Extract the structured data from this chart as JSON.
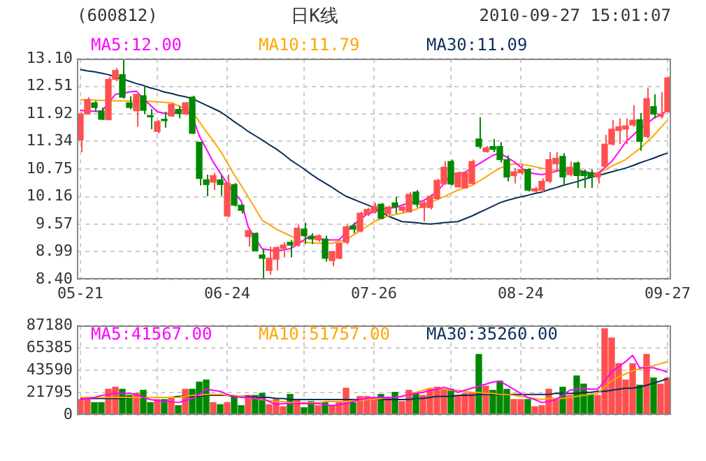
{
  "chart_data": [
    {
      "type": "candlestick",
      "title": "(600812)",
      "subtitle": "日K线",
      "annotations": [
        "2010-09-27 15:01:07"
      ],
      "legend": "top",
      "grid": true,
      "categories": [
        "05-21",
        null,
        null,
        null,
        null,
        null,
        null,
        null,
        null,
        null,
        null,
        null,
        null,
        null,
        null,
        null,
        null,
        null,
        null,
        null,
        null,
        "06-24",
        null,
        null,
        null,
        null,
        null,
        null,
        null,
        null,
        null,
        null,
        null,
        null,
        null,
        null,
        null,
        null,
        null,
        null,
        null,
        null,
        "07-26",
        null,
        null,
        null,
        null,
        null,
        null,
        null,
        null,
        null,
        null,
        null,
        null,
        null,
        null,
        null,
        null,
        null,
        null,
        null,
        null,
        "08-24",
        null,
        null,
        null,
        null,
        null,
        null,
        null,
        null,
        null,
        null,
        null,
        null,
        null,
        null,
        null,
        null,
        null,
        null,
        null,
        null,
        "09-27"
      ],
      "ylim": [
        8.4,
        13.1
      ],
      "yticks": [
        {
          "value": 8.4,
          "label": "8.40"
        },
        8.99,
        9.57,
        10.16,
        10.75,
        11.34,
        11.92,
        12.51,
        {
          "value": 13.1,
          "label": "13.10"
        }
      ],
      "ohlc": [
        [
          11.37,
          11.95,
          11.11,
          11.92
        ],
        [
          11.92,
          12.28,
          11.91,
          12.23
        ],
        [
          12.16,
          12.2,
          11.97,
          12.06
        ],
        [
          11.99,
          12.06,
          11.79,
          11.81
        ],
        [
          11.8,
          12.71,
          11.79,
          12.66
        ],
        [
          12.66,
          12.9,
          12.62,
          12.85
        ],
        [
          12.76,
          13.1,
          12.25,
          12.28
        ],
        [
          12.16,
          12.3,
          12.02,
          12.06
        ],
        [
          11.99,
          12.36,
          11.65,
          12.34
        ],
        [
          12.31,
          12.53,
          11.92,
          12.0
        ],
        [
          11.88,
          12.03,
          11.6,
          11.86
        ],
        [
          11.55,
          11.79,
          11.51,
          11.76
        ],
        [
          11.81,
          11.97,
          11.63,
          11.78
        ],
        [
          11.88,
          12.16,
          11.86,
          12.13
        ],
        [
          12.02,
          12.09,
          11.83,
          11.93
        ],
        [
          11.92,
          12.18,
          11.9,
          12.16
        ],
        [
          12.28,
          12.31,
          11.5,
          11.51
        ],
        [
          11.32,
          11.32,
          10.4,
          10.55
        ],
        [
          10.52,
          10.63,
          10.17,
          10.42
        ],
        [
          10.47,
          10.67,
          10.3,
          10.61
        ],
        [
          10.52,
          10.63,
          10.18,
          10.42
        ],
        [
          9.75,
          10.63,
          9.72,
          10.45
        ],
        [
          10.42,
          10.45,
          9.95,
          9.98
        ],
        [
          9.98,
          10.0,
          9.8,
          9.87
        ],
        [
          9.31,
          9.47,
          9.1,
          9.44
        ],
        [
          9.38,
          9.4,
          9.0,
          9.01
        ],
        [
          8.92,
          9.05,
          8.4,
          8.85
        ],
        [
          8.59,
          9.1,
          8.5,
          8.85
        ],
        [
          8.83,
          9.1,
          8.59,
          9.08
        ],
        [
          9.06,
          9.19,
          8.87,
          9.13
        ],
        [
          9.19,
          9.24,
          8.87,
          9.13
        ],
        [
          9.13,
          9.56,
          9.1,
          9.49
        ],
        [
          9.47,
          9.61,
          9.16,
          9.33
        ],
        [
          9.31,
          9.38,
          9.15,
          9.26
        ],
        [
          9.24,
          9.36,
          9.2,
          9.33
        ],
        [
          9.26,
          9.33,
          8.78,
          8.85
        ],
        [
          8.8,
          9.01,
          8.68,
          8.99
        ],
        [
          8.85,
          9.19,
          8.83,
          9.17
        ],
        [
          9.19,
          9.56,
          9.15,
          9.52
        ],
        [
          9.54,
          9.61,
          9.38,
          9.47
        ],
        [
          9.43,
          9.84,
          9.4,
          9.81
        ],
        [
          9.78,
          9.93,
          9.75,
          9.89
        ],
        [
          9.84,
          10.03,
          9.8,
          9.96
        ],
        [
          10.0,
          10.03,
          9.68,
          9.7
        ],
        [
          9.8,
          9.97,
          9.77,
          9.94
        ],
        [
          10.03,
          10.16,
          9.8,
          9.94
        ],
        [
          9.87,
          9.97,
          9.82,
          9.94
        ],
        [
          9.84,
          10.26,
          9.82,
          10.21
        ],
        [
          10.26,
          10.3,
          9.93,
          10.0
        ],
        [
          9.93,
          10.07,
          9.63,
          10.03
        ],
        [
          9.93,
          10.21,
          9.89,
          10.17
        ],
        [
          10.12,
          10.54,
          10.09,
          10.51
        ],
        [
          10.44,
          10.92,
          10.41,
          10.79
        ],
        [
          10.91,
          10.95,
          10.4,
          10.43
        ],
        [
          10.37,
          10.7,
          10.35,
          10.67
        ],
        [
          10.35,
          10.72,
          10.33,
          10.67
        ],
        [
          10.44,
          10.95,
          10.42,
          10.91
        ],
        [
          11.39,
          11.85,
          11.18,
          11.23
        ],
        [
          11.12,
          11.24,
          11.1,
          11.2
        ],
        [
          11.23,
          11.39,
          11.11,
          11.17
        ],
        [
          11.23,
          11.32,
          10.89,
          10.95
        ],
        [
          10.95,
          11.04,
          10.49,
          10.58
        ],
        [
          10.61,
          10.77,
          10.44,
          10.69
        ],
        [
          10.67,
          10.86,
          10.62,
          10.74
        ],
        [
          10.74,
          10.77,
          10.27,
          10.3
        ],
        [
          10.28,
          10.37,
          10.25,
          10.33
        ],
        [
          10.3,
          10.55,
          10.26,
          10.49
        ],
        [
          10.49,
          11.11,
          10.45,
          10.95
        ],
        [
          10.86,
          11.11,
          10.7,
          10.98
        ],
        [
          11.02,
          11.09,
          10.4,
          10.58
        ],
        [
          10.63,
          10.91,
          10.59,
          10.79
        ],
        [
          10.88,
          10.91,
          10.35,
          10.61
        ],
        [
          10.7,
          10.74,
          10.35,
          10.61
        ],
        [
          10.67,
          10.74,
          10.35,
          10.58
        ],
        [
          10.58,
          10.7,
          10.44,
          10.67
        ],
        [
          10.81,
          11.48,
          10.78,
          11.28
        ],
        [
          11.28,
          11.79,
          11.25,
          11.6
        ],
        [
          11.57,
          11.83,
          11.28,
          11.65
        ],
        [
          11.6,
          11.83,
          11.28,
          11.67
        ],
        [
          11.69,
          12.11,
          11.65,
          11.79
        ],
        [
          11.8,
          11.94,
          11.14,
          11.34
        ],
        [
          11.44,
          12.48,
          11.4,
          12.25
        ],
        [
          12.08,
          12.34,
          11.83,
          11.92
        ],
        [
          11.87,
          12.39,
          11.83,
          11.92
        ],
        [
          11.97,
          12.71,
          11.95,
          12.69
        ]
      ],
      "colors": [
        "#ff5050",
        "#ff5050",
        "#008800",
        "#008800",
        "#ff5050",
        "#ff5050",
        "#008800",
        "#008800",
        "#ff5050",
        "#008800",
        "#008800",
        "#ff5050",
        "#008800",
        "#ff5050",
        "#008800",
        "#ff5050",
        "#008800",
        "#008800",
        "#008800",
        "#ff5050",
        "#008800",
        "#ff5050",
        "#008800",
        "#008800",
        "#ff5050",
        "#008800",
        "#008800",
        "#ff5050",
        "#ff5050",
        "#ff5050",
        "#008800",
        "#ff5050",
        "#008800",
        "#008800",
        "#ff5050",
        "#008800",
        "#ff5050",
        "#ff5050",
        "#ff5050",
        "#008800",
        "#ff5050",
        "#ff5050",
        "#ff5050",
        "#008800",
        "#ff5050",
        "#008800",
        "#ff5050",
        "#ff5050",
        "#008800",
        "#ff5050",
        "#ff5050",
        "#ff5050",
        "#ff5050",
        "#008800",
        "#ff5050",
        "#ff5050",
        "#ff5050",
        "#008800",
        "#ff5050",
        "#008800",
        "#008800",
        "#008800",
        "#ff5050",
        "#ff5050",
        "#008800",
        "#ff5050",
        "#ff5050",
        "#ff5050",
        "#ff5050",
        "#008800",
        "#ff5050",
        "#008800",
        "#008800",
        "#008800",
        "#ff5050",
        "#ff5050",
        "#ff5050",
        "#ff5050",
        "#ff5050",
        "#ff5050",
        "#008800",
        "#ff5050",
        "#008800",
        "#ff5050",
        "#ff5050"
      ],
      "marker": "none",
      "line_style": "solid",
      "series": [
        {
          "type": "line",
          "name": "MA5:12.00",
          "color": "#ff00ff",
          "values": [
            12.0,
            11.99,
            11.98,
            11.97,
            12.15,
            12.34,
            12.36,
            12.39,
            12.41,
            12.25,
            12.11,
            11.97,
            11.94,
            11.92,
            11.97,
            12.02,
            11.88,
            11.46,
            11.18,
            10.9,
            10.67,
            10.44,
            10.25,
            10.07,
            9.52,
            9.28,
            9.05,
            9.03,
            9.01,
            9.03,
            9.05,
            9.14,
            9.24,
            9.33,
            9.28,
            9.24,
            9.24,
            9.24,
            9.4,
            9.56,
            9.67,
            9.79,
            9.84,
            9.89,
            9.91,
            9.93,
            9.98,
            10.03,
            10.05,
            10.07,
            10.16,
            10.26,
            10.44,
            10.63,
            10.65,
            10.68,
            10.77,
            10.86,
            10.95,
            11.04,
            11.09,
            11.0,
            10.91,
            10.79,
            10.68,
            10.65,
            10.63,
            10.66,
            10.7,
            10.73,
            10.77,
            10.73,
            10.7,
            10.67,
            10.65,
            10.78,
            10.91,
            11.11,
            11.32,
            11.46,
            11.6,
            11.71,
            11.83,
            11.91,
            12.0
          ]
        },
        {
          "type": "line",
          "name": "MA10:11.79",
          "color": "#ffa500",
          "values": [
            12.23,
            12.22,
            12.22,
            12.21,
            12.21,
            12.2,
            12.2,
            12.2,
            12.2,
            12.2,
            12.19,
            12.18,
            12.17,
            12.16,
            12.1,
            12.03,
            11.97,
            11.76,
            11.55,
            11.35,
            11.14,
            10.89,
            10.63,
            10.4,
            10.16,
            9.91,
            9.66,
            9.57,
            9.47,
            9.4,
            9.33,
            9.26,
            9.19,
            9.18,
            9.17,
            9.17,
            9.17,
            9.21,
            9.24,
            9.34,
            9.43,
            9.53,
            9.63,
            9.69,
            9.75,
            9.78,
            9.81,
            9.85,
            9.89,
            9.96,
            10.03,
            10.1,
            10.16,
            10.23,
            10.3,
            10.35,
            10.4,
            10.49,
            10.58,
            10.68,
            10.77,
            10.82,
            10.86,
            10.85,
            10.83,
            10.8,
            10.77,
            10.75,
            10.72,
            10.71,
            10.7,
            10.69,
            10.67,
            10.66,
            10.65,
            10.73,
            10.81,
            10.88,
            10.95,
            11.07,
            11.18,
            11.32,
            11.46,
            11.63,
            11.79
          ]
        },
        {
          "type": "line",
          "name": "MA30:11.09",
          "color": "#0a2d5a",
          "values": [
            12.87,
            12.84,
            12.82,
            12.79,
            12.76,
            12.71,
            12.67,
            12.62,
            12.57,
            12.53,
            12.48,
            12.44,
            12.39,
            12.36,
            12.32,
            12.29,
            12.25,
            12.18,
            12.11,
            12.04,
            11.97,
            11.87,
            11.76,
            11.66,
            11.55,
            11.46,
            11.37,
            11.27,
            11.18,
            11.07,
            10.95,
            10.85,
            10.75,
            10.64,
            10.54,
            10.45,
            10.36,
            10.26,
            10.17,
            10.11,
            10.05,
            9.99,
            9.93,
            9.84,
            9.75,
            9.69,
            9.63,
            9.62,
            9.61,
            9.59,
            9.58,
            9.59,
            9.61,
            9.62,
            9.63,
            9.69,
            9.75,
            9.82,
            9.89,
            9.96,
            10.03,
            10.08,
            10.12,
            10.16,
            10.19,
            10.23,
            10.26,
            10.31,
            10.35,
            10.4,
            10.44,
            10.48,
            10.53,
            10.57,
            10.61,
            10.65,
            10.69,
            10.73,
            10.77,
            10.82,
            10.88,
            10.93,
            10.98,
            11.04,
            11.09
          ]
        }
      ]
    },
    {
      "type": "bar",
      "legend": "top",
      "grid": true,
      "tick_labels": "y",
      "categories": [
        null,
        null,
        null,
        null,
        null,
        null,
        null,
        null,
        null,
        null,
        null,
        null,
        null,
        null,
        null,
        null,
        null,
        null,
        null,
        null,
        null,
        null,
        null,
        null,
        null,
        null,
        null,
        null,
        null,
        null,
        null,
        null,
        null,
        null,
        null,
        null,
        null,
        null,
        null,
        null,
        null,
        null,
        null,
        null,
        null,
        null,
        null,
        null,
        null,
        null,
        null,
        null,
        null,
        null,
        null,
        null,
        null,
        null,
        null,
        null,
        null,
        null,
        null,
        null,
        null,
        null,
        null,
        null,
        null,
        null,
        null,
        null,
        null,
        null,
        null,
        null,
        null,
        null,
        null,
        null,
        null,
        null,
        null,
        null,
        null
      ],
      "ylim": [
        0,
        87180
      ],
      "yticks": [
        0,
        21795,
        43590,
        65385,
        87180
      ],
      "values": [
        15000,
        15000,
        12000,
        12000,
        25000,
        27000,
        25000,
        19000,
        21000,
        24000,
        12000,
        15000,
        15000,
        17000,
        9000,
        25000,
        25000,
        32000,
        34000,
        12000,
        10000,
        12000,
        18000,
        9000,
        19000,
        19000,
        21000,
        10000,
        15000,
        8000,
        20000,
        15000,
        7000,
        13000,
        9000,
        12000,
        9000,
        12000,
        26000,
        12000,
        18000,
        18000,
        17000,
        20000,
        17000,
        22000,
        13000,
        24000,
        21000,
        19000,
        25000,
        27000,
        25000,
        25000,
        19000,
        21000,
        22000,
        59000,
        28000,
        24000,
        33000,
        25000,
        15000,
        15000,
        15000,
        8000,
        9000,
        25000,
        15000,
        27000,
        19000,
        38000,
        30000,
        20000,
        19000,
        84000,
        75000,
        50000,
        34000,
        50000,
        29000,
        59000,
        36000,
        30000,
        36000
      ],
      "colors": [
        "#ff5050",
        "#ff5050",
        "#008800",
        "#008800",
        "#ff5050",
        "#ff5050",
        "#008800",
        "#008800",
        "#ff5050",
        "#008800",
        "#008800",
        "#ff5050",
        "#008800",
        "#ff5050",
        "#008800",
        "#ff5050",
        "#008800",
        "#008800",
        "#008800",
        "#ff5050",
        "#008800",
        "#ff5050",
        "#008800",
        "#008800",
        "#ff5050",
        "#008800",
        "#008800",
        "#ff5050",
        "#ff5050",
        "#ff5050",
        "#008800",
        "#ff5050",
        "#008800",
        "#008800",
        "#ff5050",
        "#008800",
        "#ff5050",
        "#ff5050",
        "#ff5050",
        "#008800",
        "#ff5050",
        "#ff5050",
        "#ff5050",
        "#008800",
        "#ff5050",
        "#008800",
        "#ff5050",
        "#ff5050",
        "#008800",
        "#ff5050",
        "#ff5050",
        "#ff5050",
        "#ff5050",
        "#008800",
        "#ff5050",
        "#ff5050",
        "#ff5050",
        "#008800",
        "#ff5050",
        "#008800",
        "#008800",
        "#008800",
        "#ff5050",
        "#ff5050",
        "#008800",
        "#ff5050",
        "#ff5050",
        "#ff5050",
        "#ff5050",
        "#008800",
        "#ff5050",
        "#008800",
        "#008800",
        "#008800",
        "#ff5050",
        "#ff5050",
        "#ff5050",
        "#ff5050",
        "#ff5050",
        "#ff5050",
        "#008800",
        "#ff5050",
        "#008800",
        "#ff5050",
        "#ff5050"
      ],
      "marker": "none",
      "line_style": "solid",
      "series": [
        {
          "type": "line",
          "name": "MA5:41567.00",
          "color": "#ff00ff",
          "values": [
            15000,
            16000,
            17000,
            19000,
            20000,
            21000,
            21000,
            21000,
            20000,
            17000,
            15000,
            14000,
            13000,
            13000,
            12000,
            14000,
            16000,
            20000,
            25000,
            24000,
            23000,
            20000,
            18000,
            17000,
            17000,
            16000,
            16000,
            13000,
            10000,
            11000,
            11000,
            11000,
            11000,
            11000,
            11000,
            10000,
            9000,
            10000,
            11000,
            13000,
            15000,
            16000,
            17000,
            17000,
            17000,
            17000,
            18000,
            20000,
            21000,
            22000,
            24000,
            25000,
            27000,
            25000,
            22000,
            24000,
            26000,
            28000,
            30000,
            32000,
            33000,
            29000,
            25000,
            21000,
            17000,
            15000,
            12000,
            13000,
            15000,
            19000,
            24000,
            25000,
            26000,
            25000,
            25000,
            33000,
            42000,
            47000,
            52000,
            58000,
            46000,
            46000,
            46000,
            44000,
            41567
          ]
        },
        {
          "type": "line",
          "name": "MA10:51757.00",
          "color": "#ffa500",
          "values": [
            17000,
            17000,
            17000,
            17000,
            17000,
            17000,
            17000,
            17000,
            17000,
            17000,
            17000,
            17000,
            17000,
            17000,
            17000,
            18000,
            19000,
            19000,
            20000,
            20000,
            20000,
            19000,
            19000,
            18000,
            17000,
            16000,
            15000,
            14000,
            13000,
            13000,
            12000,
            12000,
            12000,
            12000,
            12000,
            13000,
            13000,
            13000,
            13000,
            14000,
            14000,
            15000,
            15000,
            16000,
            17000,
            17000,
            18000,
            20000,
            22000,
            24000,
            26000,
            25000,
            25000,
            24000,
            24000,
            23000,
            22000,
            22000,
            21000,
            21000,
            20000,
            20000,
            19000,
            18000,
            17000,
            16000,
            15000,
            16000,
            16000,
            16000,
            17000,
            18000,
            19000,
            20000,
            21000,
            27000,
            33000,
            37000,
            40000,
            43000,
            45000,
            47000,
            48000,
            50000,
            51757
          ]
        },
        {
          "type": "line",
          "name": "MA30:35260.00",
          "color": "#0a2d5a",
          "values": [
            16000,
            16000,
            16000,
            16000,
            16000,
            16000,
            16000,
            17000,
            17000,
            17000,
            17000,
            17000,
            17000,
            17000,
            18000,
            18000,
            18000,
            18000,
            19000,
            19000,
            19000,
            19000,
            18000,
            18000,
            18000,
            17000,
            17000,
            17000,
            16000,
            16000,
            15000,
            15000,
            15000,
            15000,
            15000,
            15000,
            15000,
            15000,
            15000,
            15000,
            15000,
            15000,
            15000,
            15000,
            15000,
            15000,
            15000,
            15000,
            16000,
            16000,
            17000,
            18000,
            18000,
            18000,
            19000,
            19000,
            19000,
            20000,
            20000,
            20000,
            20000,
            20000,
            20000,
            20000,
            20000,
            20000,
            20000,
            20000,
            21000,
            21000,
            21000,
            21000,
            22000,
            22000,
            23000,
            23000,
            24000,
            25000,
            26000,
            26000,
            27000,
            29000,
            31000,
            33000,
            35260
          ]
        }
      ]
    }
  ]
}
